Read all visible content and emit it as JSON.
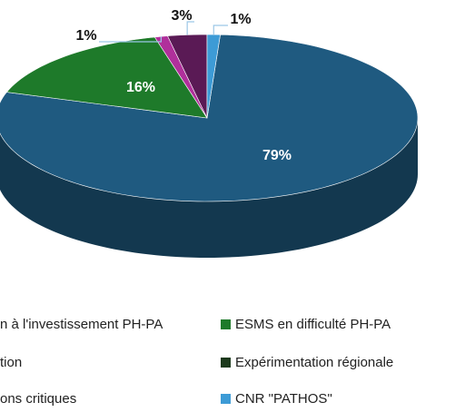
{
  "chart_data": {
    "type": "pie",
    "categories": [
      "n à l'investissement PH-PA",
      "ESMS en difficulté PH-PA",
      "tion",
      "Expérimentation régionale",
      "ons critiques",
      "CNR \"PATHOS\""
    ],
    "values": [
      79,
      16,
      1,
      null,
      3,
      1
    ],
    "value_labels": [
      "79%",
      "16%",
      "1%",
      null,
      "3%",
      "1%"
    ],
    "colors": [
      "#1f5a80",
      "#1e7a2a",
      "#b0309b",
      "#1c3a1c",
      "#5a1a55",
      "#3d9bd6"
    ]
  }
}
